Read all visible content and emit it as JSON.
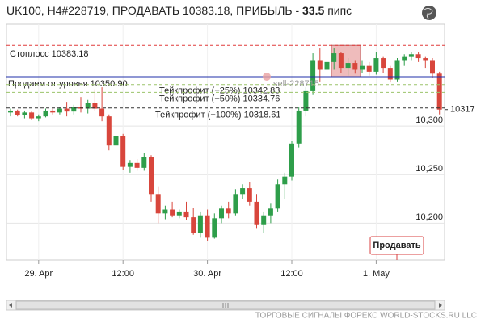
{
  "chart_data": {
    "type": "candlestick",
    "title": "UK100, H4#228719, ПРОДАВАТЬ 10383.18, ПРИБЫЛЬ -",
    "profit": "33.5",
    "profit_unit": "пипс",
    "categories": [
      null,
      null,
      null,
      null,
      "29. Apr",
      null,
      null,
      null,
      null,
      null,
      null,
      null,
      null,
      null,
      null,
      null,
      "12:00",
      null,
      null,
      null,
      null,
      null,
      null,
      null,
      null,
      null,
      null,
      null,
      "30. Apr",
      null,
      null,
      null,
      null,
      null,
      null,
      null,
      null,
      null,
      null,
      null,
      "12:00",
      null,
      null,
      null,
      null,
      null,
      null,
      null,
      null,
      null,
      null,
      null,
      "1. May",
      null,
      null,
      null,
      null,
      null,
      null,
      null,
      null,
      null
    ],
    "ohlc": [
      [
        10314,
        10318,
        10310,
        10316
      ],
      [
        10316,
        10317,
        10310,
        10311
      ],
      [
        10311,
        10316,
        10308,
        10314
      ],
      [
        10314,
        10315,
        10306,
        10308
      ],
      [
        10308,
        10312,
        10305,
        10310
      ],
      [
        10310,
        10318,
        10309,
        10316
      ],
      [
        10316,
        10318,
        10312,
        10314
      ],
      [
        10314,
        10320,
        10312,
        10318
      ],
      [
        10318,
        10325,
        10310,
        10315
      ],
      [
        10315,
        10322,
        10312,
        10320
      ],
      [
        10320,
        10330,
        10314,
        10318
      ],
      [
        10318,
        10327,
        10313,
        10324
      ],
      [
        10324,
        10338,
        10316,
        10318
      ],
      [
        10318,
        10340,
        10305,
        10310
      ],
      [
        10310,
        10312,
        10275,
        10280
      ],
      [
        10280,
        10295,
        10270,
        10290
      ],
      [
        10290,
        10292,
        10255,
        10258
      ],
      [
        10258,
        10265,
        10252,
        10262
      ],
      [
        10262,
        10266,
        10254,
        10257
      ],
      [
        10257,
        10272,
        10254,
        10268
      ],
      [
        10268,
        10270,
        10222,
        10230
      ],
      [
        10230,
        10238,
        10200,
        10210
      ],
      [
        10210,
        10218,
        10204,
        10214
      ],
      [
        10214,
        10222,
        10206,
        10208
      ],
      [
        10208,
        10214,
        10205,
        10212
      ],
      [
        10212,
        10222,
        10203,
        10206
      ],
      [
        10206,
        10216,
        10188,
        10190
      ],
      [
        10190,
        10212,
        10185,
        10208
      ],
      [
        10208,
        10214,
        10182,
        10185
      ],
      [
        10185,
        10210,
        10184,
        10205
      ],
      [
        10205,
        10218,
        10200,
        10215
      ],
      [
        10215,
        10222,
        10205,
        10210
      ],
      [
        10210,
        10235,
        10208,
        10230
      ],
      [
        10230,
        10240,
        10225,
        10236
      ],
      [
        10236,
        10242,
        10218,
        10222
      ],
      [
        10222,
        10230,
        10195,
        10198
      ],
      [
        10198,
        10212,
        10190,
        10208
      ],
      [
        10208,
        10220,
        10200,
        10215
      ],
      [
        10215,
        10245,
        10212,
        10240
      ],
      [
        10240,
        10252,
        10225,
        10248
      ],
      [
        10248,
        10285,
        10244,
        10282
      ],
      [
        10282,
        10320,
        10278,
        10316
      ],
      [
        10316,
        10340,
        10310,
        10336
      ],
      [
        10336,
        10375,
        10332,
        10368
      ],
      [
        10368,
        10380,
        10346,
        10358
      ],
      [
        10358,
        10372,
        10352,
        10366
      ],
      [
        10366,
        10380,
        10358,
        10375
      ],
      [
        10375,
        10376,
        10355,
        10360
      ],
      [
        10360,
        10370,
        10352,
        10365
      ],
      [
        10365,
        10368,
        10354,
        10358
      ],
      [
        10358,
        10368,
        10355,
        10362
      ],
      [
        10362,
        10366,
        10352,
        10356
      ],
      [
        10356,
        10376,
        10353,
        10370
      ],
      [
        10370,
        10372,
        10355,
        10360
      ],
      [
        10360,
        10362,
        10345,
        10348
      ],
      [
        10348,
        10370,
        10346,
        10368
      ],
      [
        10368,
        10374,
        10362,
        10372
      ],
      [
        10372,
        10376,
        10368,
        10374
      ],
      [
        10374,
        10376,
        10366,
        10370
      ],
      [
        10370,
        10372,
        10360,
        10368
      ],
      [
        10368,
        10370,
        10350,
        10354
      ],
      [
        10354,
        10356,
        10312,
        10317
      ]
    ],
    "up_color": "#2e9e4a",
    "down_color": "#d8463c",
    "ylim": [
      10162,
      10405
    ],
    "yticks": [
      {
        "value": 10200,
        "label": "10,200"
      },
      {
        "value": 10250,
        "label": "10,250"
      },
      {
        "value": 10300,
        "label": "10,300"
      }
    ],
    "grid": true,
    "levels": [
      {
        "label": "Стоплосс 10383.18",
        "value": 10383.18,
        "color": "#e03a3a",
        "style": "dashed"
      },
      {
        "label": "Продаем от уровня 10350.90",
        "value": 10350.9,
        "color": "#1f2fa8",
        "style": "solid"
      },
      {
        "label": "Тейкпрофит (+25%) 10342.83",
        "value": 10342.83,
        "color": "#9bc46a",
        "style": "dashed"
      },
      {
        "label": "Тейкпрофит (+50%) 10334.76",
        "value": 10334.76,
        "color": "#9bc46a",
        "style": "dashed"
      },
      {
        "label": "Тейкпрофит (+100%) 10318.61",
        "value": 10318.61,
        "color": "#333333",
        "style": "dashed"
      }
    ],
    "order_marker": {
      "label": "sell-228715",
      "value": 10350.9
    },
    "current_price": 10317,
    "button": "Продавать",
    "footer": "ТОРГОВЫЕ СИГНАЛЫ ФОРЕКС WORLD-STOCKS.RU LLC"
  }
}
